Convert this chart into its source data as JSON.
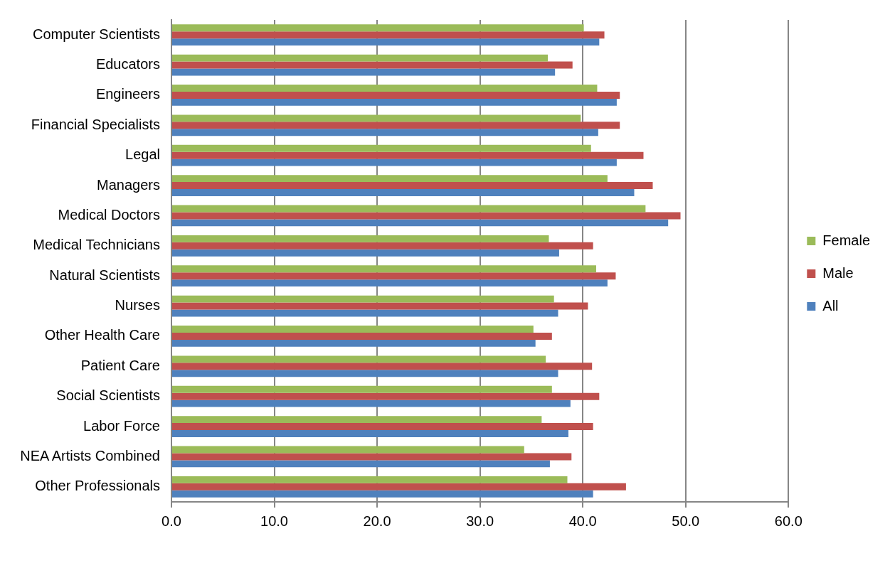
{
  "chart_data": {
    "type": "bar",
    "orientation": "horizontal",
    "categories": [
      "Computer Scientists",
      "Educators",
      "Engineers",
      "Financial Specialists",
      "Legal",
      "Managers",
      "Medical Doctors",
      "Medical Technicians",
      "Natural Scientists",
      "Nurses",
      "Other Health Care",
      "Patient Care",
      "Social Scientists",
      "Labor Force",
      "NEA Artists Combined",
      "Other Professionals"
    ],
    "series": [
      {
        "name": "Female",
        "color": "#9bbb59",
        "values": [
          40.1,
          36.6,
          41.4,
          39.8,
          40.8,
          42.4,
          46.1,
          36.7,
          41.3,
          37.2,
          35.2,
          36.4,
          37.0,
          36.0,
          34.3,
          38.5
        ]
      },
      {
        "name": "Male",
        "color": "#c0504d",
        "values": [
          42.1,
          39.0,
          43.6,
          43.6,
          45.9,
          46.8,
          49.5,
          41.0,
          43.2,
          40.5,
          37.0,
          40.9,
          41.6,
          41.0,
          38.9,
          44.2
        ]
      },
      {
        "name": "All",
        "color": "#4f81bd",
        "values": [
          41.6,
          37.3,
          43.3,
          41.5,
          43.3,
          45.0,
          48.3,
          37.7,
          42.4,
          37.6,
          35.4,
          37.6,
          38.8,
          38.6,
          36.8,
          41.0
        ]
      }
    ],
    "xlim": [
      0,
      60
    ],
    "xticks": [
      {
        "value": 0,
        "label": "0.0"
      },
      {
        "value": 10,
        "label": "10.0"
      },
      {
        "value": 20,
        "label": "20.0"
      },
      {
        "value": 30,
        "label": "30.0"
      },
      {
        "value": 40,
        "label": "40.0"
      },
      {
        "value": 50,
        "label": "50.0"
      },
      {
        "value": 60,
        "label": "60.0"
      }
    ],
    "grid": "x",
    "legend": "right"
  }
}
